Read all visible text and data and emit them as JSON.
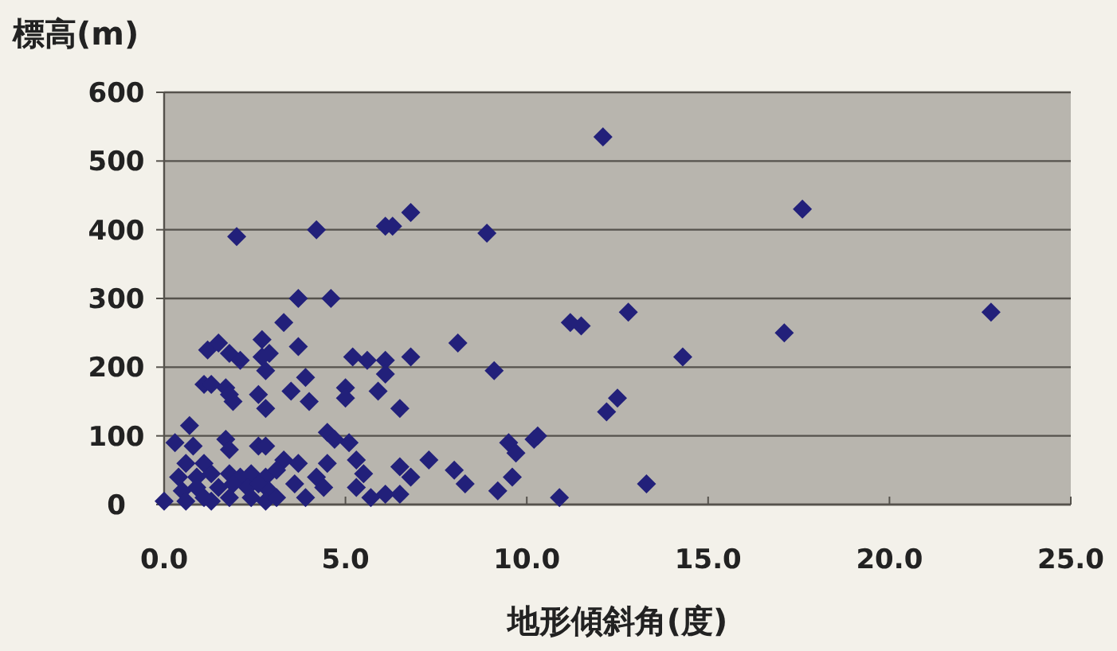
{
  "chart_data": {
    "type": "scatter",
    "ylabel": "標高(m)",
    "xlabel": "地形傾斜角(度)",
    "xlim": [
      0,
      25
    ],
    "ylim": [
      0,
      600
    ],
    "xticks": [
      {
        "value": 0,
        "label": "0.0"
      },
      {
        "value": 5,
        "label": "5.0"
      },
      {
        "value": 10,
        "label": "10.0"
      },
      {
        "value": 15,
        "label": "15.0"
      },
      {
        "value": 20,
        "label": "20.0"
      },
      {
        "value": 25,
        "label": "25.0"
      }
    ],
    "yticks": [
      0,
      100,
      200,
      300,
      400,
      500,
      600
    ],
    "grid": "y",
    "marker": "diamond",
    "series": [
      {
        "color": "#22207a",
        "x": [
          12.1,
          17.6,
          8.9,
          22.8,
          12.8,
          11.2,
          11.5,
          17.1,
          14.3,
          9.1,
          12.5,
          12.2,
          9.5,
          9.7,
          10.2,
          10.3,
          9.6,
          9.2,
          10.9,
          13.3,
          2.0,
          4.2,
          6.1,
          6.3,
          6.8,
          3.7,
          4.6,
          3.3,
          8.1,
          1.2,
          1.5,
          1.8,
          2.1,
          2.7,
          2.7,
          2.9,
          2.8,
          3.7,
          5.2,
          5.6,
          6.1,
          6.1,
          6.8,
          1.1,
          1.3,
          1.7,
          1.8,
          1.9,
          2.6,
          2.8,
          3.5,
          3.9,
          4.0,
          5.0,
          5.0,
          5.9,
          6.5,
          0.7,
          0.3,
          0.8,
          1.7,
          1.8,
          2.6,
          2.8,
          4.5,
          4.7,
          5.1,
          7.3,
          8.0,
          8.3,
          0.6,
          1.1,
          3.3,
          3.7,
          4.5,
          5.3,
          5.5,
          6.5,
          6.8,
          0.4,
          0.9,
          1.3,
          1.8,
          2.1,
          2.4,
          2.8,
          3.1,
          4.2,
          4.4,
          3.6,
          5.3,
          0.5,
          0.9,
          1.5,
          1.9,
          2.3,
          2.6,
          2.9,
          3.9,
          1.3,
          2.8,
          3.1,
          5.7,
          6.1,
          6.5,
          0.0,
          0.6,
          1.1,
          1.8,
          2.4
        ],
        "values": [
          535,
          430,
          395,
          280,
          280,
          265,
          260,
          250,
          215,
          195,
          155,
          135,
          90,
          75,
          95,
          100,
          40,
          20,
          10,
          30,
          390,
          400,
          405,
          405,
          425,
          300,
          300,
          265,
          235,
          225,
          235,
          220,
          210,
          240,
          215,
          220,
          195,
          230,
          215,
          210,
          210,
          190,
          215,
          175,
          175,
          170,
          160,
          150,
          160,
          140,
          165,
          185,
          150,
          170,
          155,
          165,
          140,
          115,
          90,
          85,
          95,
          80,
          85,
          85,
          105,
          95,
          90,
          65,
          50,
          30,
          60,
          60,
          65,
          60,
          60,
          65,
          45,
          55,
          40,
          40,
          40,
          45,
          45,
          40,
          45,
          40,
          50,
          40,
          25,
          30,
          25,
          20,
          25,
          25,
          30,
          25,
          30,
          20,
          10,
          5,
          5,
          10,
          10,
          15,
          15,
          5,
          5,
          10,
          10,
          10
        ]
      }
    ]
  }
}
